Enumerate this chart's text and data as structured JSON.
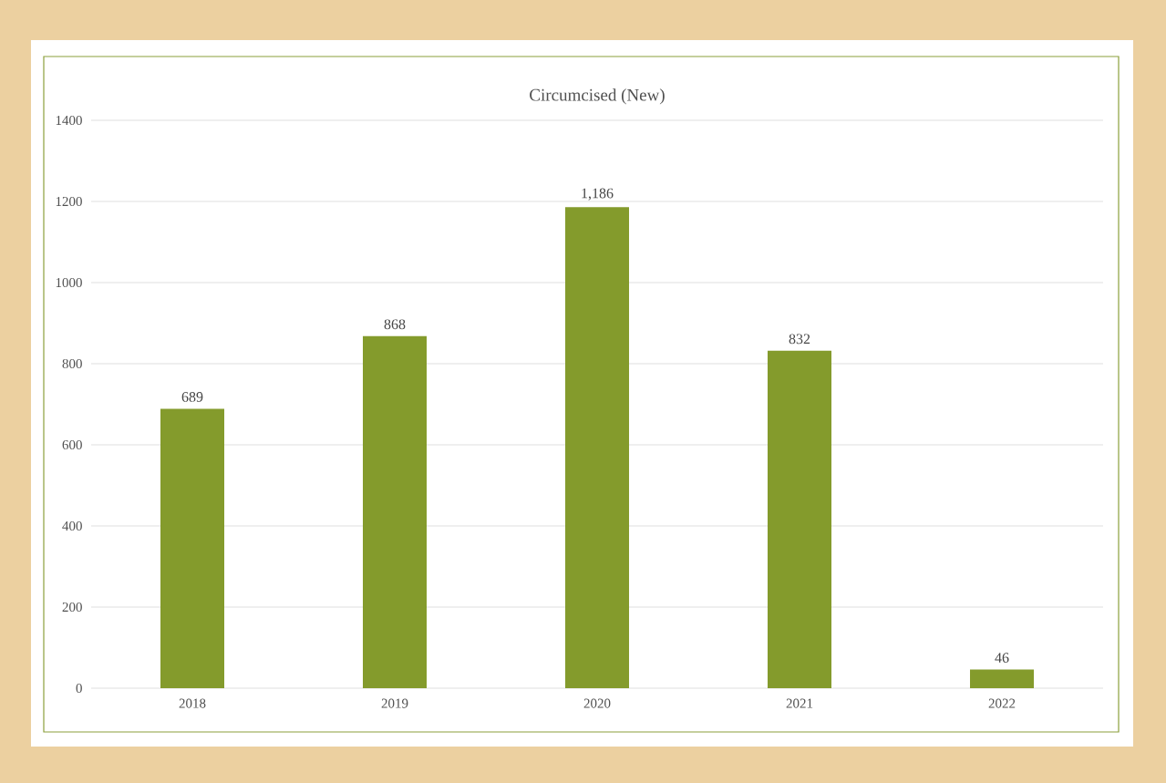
{
  "chart_data": {
    "type": "bar",
    "title": "Circumcised (New)",
    "categories": [
      "2018",
      "2019",
      "2020",
      "2021",
      "2022"
    ],
    "values": [
      689,
      868,
      1186,
      832,
      46
    ],
    "value_labels": [
      "689",
      "868",
      "1,186",
      "832",
      "46"
    ],
    "color": "#849b2c",
    "ylim": [
      0,
      1400
    ],
    "yticks": [
      0,
      200,
      400,
      600,
      800,
      1000,
      1200,
      1400
    ],
    "grid": "y"
  }
}
